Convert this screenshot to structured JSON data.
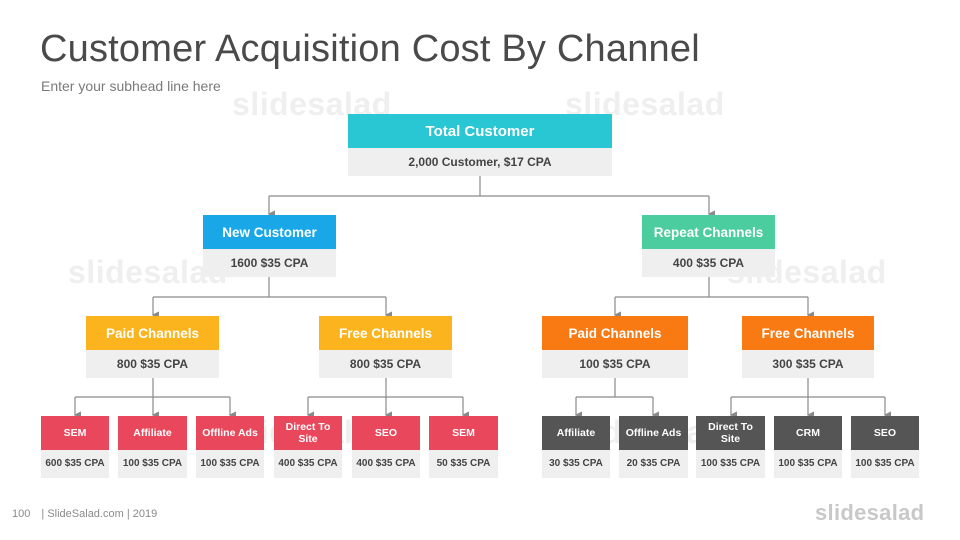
{
  "title": "Customer Acquisition Cost By Channel",
  "subtitle": "Enter your subhead line here",
  "colors": {
    "teal": "#29c6d4",
    "blue": "#19a7e8",
    "green": "#4ccd9f",
    "yellow": "#fbb41e",
    "orange": "#f97a12",
    "red": "#e9475b",
    "gray": "#555555"
  },
  "root": {
    "label": "Total Customer",
    "value": "2,000  Customer,  $17  CPA"
  },
  "new_customer": {
    "label": "New Customer",
    "value": "1600  $35  CPA"
  },
  "repeat_channels": {
    "label": "Repeat Channels",
    "value": "400  $35  CPA"
  },
  "new_paid": {
    "label": "Paid Channels",
    "value": "800  $35  CPA"
  },
  "new_free": {
    "label": "Free Channels",
    "value": "800  $35  CPA"
  },
  "repeat_paid": {
    "label": "Paid Channels",
    "value": "100  $35  CPA"
  },
  "repeat_free": {
    "label": "Free Channels",
    "value": "300  $35  CPA"
  },
  "leaves": [
    {
      "label": "SEM",
      "value": "600 $35 CPA"
    },
    {
      "label": "Affiliate",
      "value": "100 $35 CPA"
    },
    {
      "label": "Offline Ads",
      "value": "100 $35 CPA"
    },
    {
      "label": "Direct To Site",
      "value": "400 $35 CPA"
    },
    {
      "label": "SEO",
      "value": "400 $35 CPA"
    },
    {
      "label": "SEM",
      "value": "50 $35 CPA"
    },
    {
      "label": "Affiliate",
      "value": "30 $35 CPA"
    },
    {
      "label": "Offline Ads",
      "value": "20 $35 CPA"
    },
    {
      "label": "Direct To Site",
      "value": "100 $35 CPA"
    },
    {
      "label": "CRM",
      "value": "100 $35 CPA"
    },
    {
      "label": "SEO",
      "value": "100 $35 CPA"
    }
  ],
  "footer": {
    "page": "100",
    "text": "| SlideSalad.com | 2019"
  },
  "logo_text": "slidesalad",
  "watermark_text": "slidesalad"
}
